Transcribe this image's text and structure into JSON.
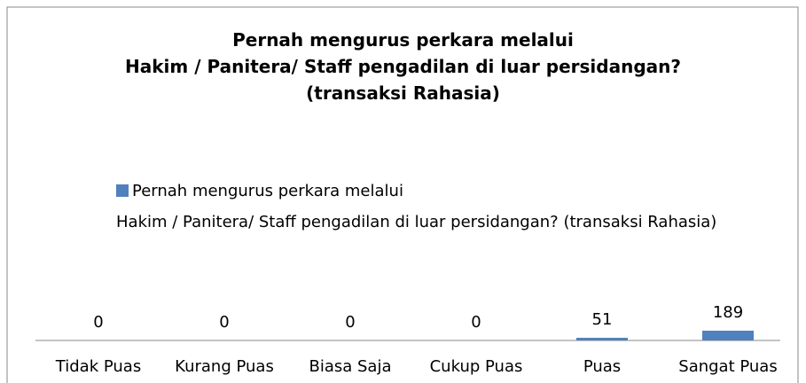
{
  "chart_data": {
    "type": "bar",
    "title": "Pernah mengurus perkara melalui\nHakim / Panitera/ Staff pengadilan di luar persidangan?\n(transaksi Rahasia)",
    "categories": [
      "Tidak Puas",
      "Kurang Puas",
      "Biasa Saja",
      "Cukup Puas",
      "Puas",
      "Sangat Puas"
    ],
    "series": [
      {
        "name": "Pernah mengurus perkara melalui\nHakim / Panitera/ Staff pengadilan di luar persidangan? (transaksi Rahasia)",
        "color": "#4f81bd",
        "values": [
          0,
          0,
          0,
          0,
          51,
          189
        ]
      }
    ],
    "legend": "top"
  }
}
